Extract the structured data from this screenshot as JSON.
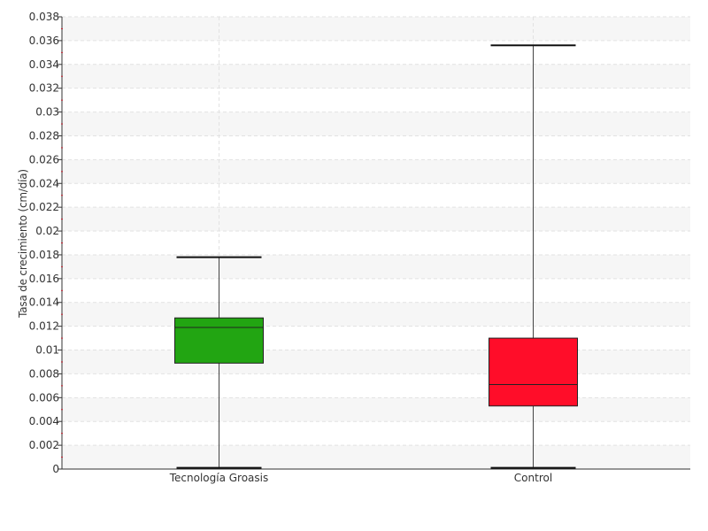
{
  "chart_data": {
    "type": "box",
    "title": "",
    "xlabel": "",
    "ylabel": "Tasa de crecimiento (cm/día)",
    "ylim": [
      0,
      0.038
    ],
    "ytick_step": 0.002,
    "yticks": [
      "0",
      "0.002",
      "0.004",
      "0.006",
      "0.008",
      "0.01",
      "0.012",
      "0.014",
      "0.016",
      "0.018",
      "0.02",
      "0.022",
      "0.024",
      "0.026",
      "0.028",
      "0.03",
      "0.032",
      "0.034",
      "0.036",
      "0.038"
    ],
    "grid": true,
    "categories": [
      "Tecnología Groasis",
      "Control"
    ],
    "boxes": [
      {
        "category": "Tecnología Groasis",
        "color": "#22a512",
        "whisker_low": 0.0001,
        "q1": 0.0089,
        "median": 0.0119,
        "q3": 0.0127,
        "whisker_high": 0.0178
      },
      {
        "category": "Control",
        "color": "#ff0d29",
        "whisker_low": 0.0001,
        "q1": 0.0053,
        "median": 0.0071,
        "q3": 0.011,
        "whisker_high": 0.0356
      }
    ]
  }
}
